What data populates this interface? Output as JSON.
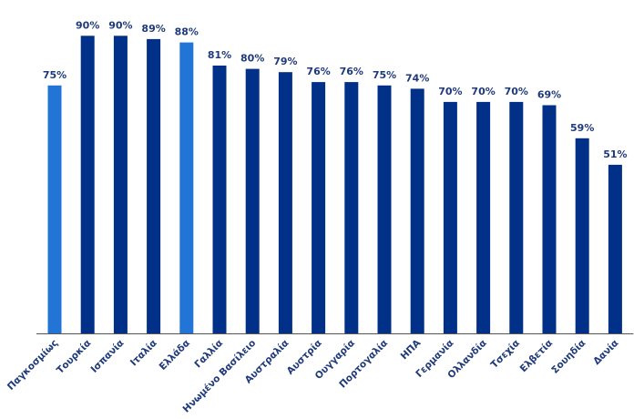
{
  "chart_data": {
    "type": "bar",
    "title": "",
    "xlabel": "",
    "ylabel": "",
    "ylim": [
      0,
      100
    ],
    "grid": false,
    "legend": "none",
    "value_suffix": "%",
    "colors": {
      "default_bar": "#003087",
      "highlight_bar": "#2275d7",
      "label_text": "#1f3a7a",
      "axis_line": "#555555"
    },
    "categories": [
      "Παγκοσμίως",
      "Τουρκία",
      "Ισπανία",
      "Ιταλία",
      "Ελλάδα",
      "Γαλλία",
      "Ηνωμένο Βασίλειο",
      "Αυστραλία",
      "Αυστρία",
      "Ουγγαρία",
      "Πορτογαλία",
      "ΗΠΑ",
      "Γερμανία",
      "Ολλανδία",
      "Τσεχία",
      "Ελβετία",
      "Σουηδία",
      "Δανία"
    ],
    "values": [
      75,
      90,
      90,
      89,
      88,
      81,
      80,
      79,
      76,
      76,
      75,
      74,
      70,
      70,
      70,
      69,
      59,
      51
    ],
    "highlighted": [
      "Παγκοσμίως",
      "Ελλάδα"
    ]
  }
}
